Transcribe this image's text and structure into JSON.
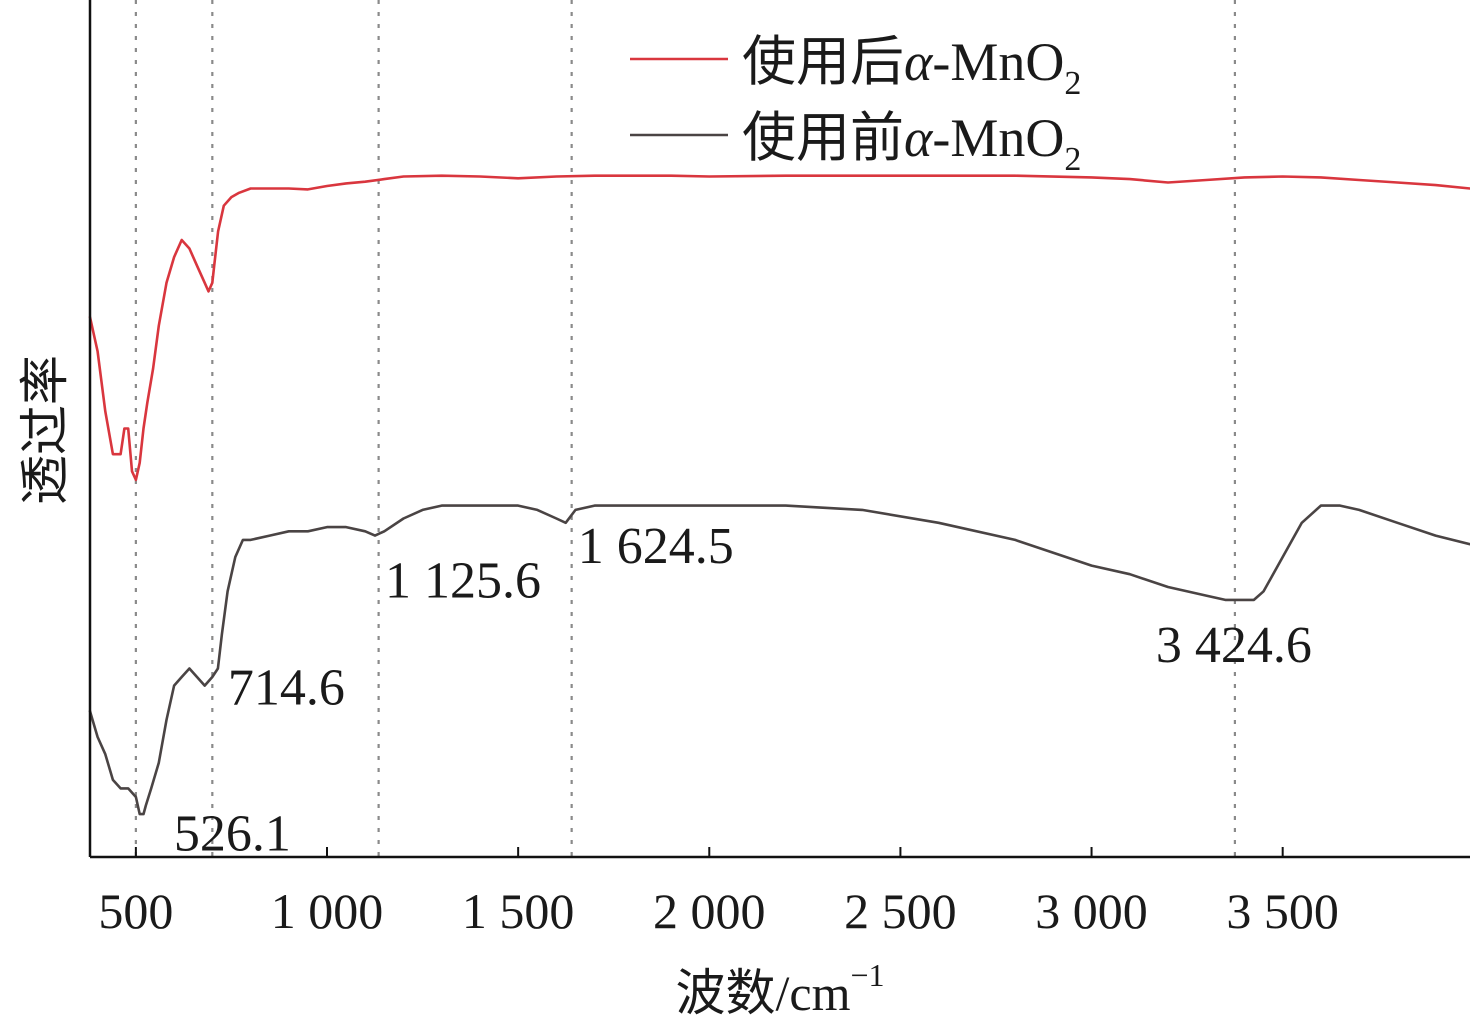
{
  "chart_data": {
    "type": "line",
    "title": "",
    "xlabel": "波数/cm",
    "xlabel_sup": "−1",
    "ylabel": "透过率",
    "xlim": [
      380,
      3990
    ],
    "ylim": [
      0,
      1
    ],
    "yticks_shown": false,
    "grid": false,
    "legend_position": "top-right",
    "x_ticks": [
      {
        "value": 500,
        "label": "500"
      },
      {
        "value": 1000,
        "label": "1 000"
      },
      {
        "value": 1500,
        "label": "1 500"
      },
      {
        "value": 2000,
        "label": "2 000"
      },
      {
        "value": 2500,
        "label": "2 500"
      },
      {
        "value": 3000,
        "label": "3 000"
      },
      {
        "value": 3500,
        "label": "3 500"
      }
    ],
    "reference_lines": [
      500,
      700,
      1135,
      1640,
      3375
    ],
    "series": [
      {
        "name": "使用后α-MnO2",
        "legend_main": "使用后",
        "legend_greek": "α",
        "legend_formula": "-MnO",
        "legend_sub": "2",
        "color": "#d9363e",
        "x": [
          380,
          400,
          420,
          440,
          460,
          470,
          480,
          490,
          500,
          510,
          520,
          530,
          545,
          560,
          580,
          600,
          620,
          640,
          660,
          680,
          690,
          700,
          705,
          715,
          730,
          750,
          770,
          800,
          850,
          900,
          950,
          1000,
          1050,
          1100,
          1150,
          1200,
          1300,
          1400,
          1500,
          1600,
          1700,
          1800,
          1900,
          2000,
          2200,
          2400,
          2600,
          2800,
          3000,
          3100,
          3200,
          3300,
          3400,
          3500,
          3600,
          3700,
          3800,
          3900,
          3990
        ],
        "values": [
          0.63,
          0.59,
          0.52,
          0.47,
          0.47,
          0.5,
          0.5,
          0.45,
          0.44,
          0.46,
          0.5,
          0.53,
          0.57,
          0.62,
          0.67,
          0.7,
          0.72,
          0.71,
          0.69,
          0.67,
          0.66,
          0.67,
          0.69,
          0.73,
          0.76,
          0.77,
          0.775,
          0.78,
          0.78,
          0.78,
          0.779,
          0.783,
          0.786,
          0.788,
          0.791,
          0.794,
          0.795,
          0.794,
          0.792,
          0.794,
          0.795,
          0.795,
          0.795,
          0.794,
          0.795,
          0.795,
          0.795,
          0.795,
          0.793,
          0.791,
          0.787,
          0.79,
          0.793,
          0.794,
          0.793,
          0.79,
          0.787,
          0.784,
          0.78
        ]
      },
      {
        "name": "使用前α-MnO2",
        "legend_main": "使用前",
        "legend_greek": "α",
        "legend_formula": "-MnO",
        "legend_sub": "2",
        "color": "#4a4444",
        "x": [
          380,
          400,
          420,
          440,
          460,
          480,
          500,
          510,
          520,
          526,
          540,
          560,
          580,
          600,
          620,
          640,
          660,
          680,
          700,
          714.6,
          725,
          740,
          760,
          780,
          800,
          850,
          900,
          950,
          1000,
          1050,
          1100,
          1125.6,
          1150,
          1200,
          1250,
          1300,
          1400,
          1500,
          1550,
          1600,
          1624.5,
          1650,
          1700,
          1800,
          2000,
          2200,
          2400,
          2600,
          2800,
          3000,
          3100,
          3200,
          3300,
          3350,
          3424.6,
          3450,
          3500,
          3550,
          3600,
          3650,
          3700,
          3800,
          3900,
          3990
        ],
        "values": [
          0.17,
          0.14,
          0.12,
          0.09,
          0.08,
          0.08,
          0.07,
          0.05,
          0.05,
          0.06,
          0.08,
          0.11,
          0.16,
          0.2,
          0.21,
          0.22,
          0.21,
          0.2,
          0.21,
          0.22,
          0.26,
          0.31,
          0.35,
          0.37,
          0.37,
          0.375,
          0.38,
          0.38,
          0.385,
          0.385,
          0.38,
          0.375,
          0.38,
          0.395,
          0.405,
          0.41,
          0.41,
          0.41,
          0.405,
          0.395,
          0.39,
          0.405,
          0.41,
          0.41,
          0.41,
          0.41,
          0.405,
          0.39,
          0.37,
          0.34,
          0.33,
          0.315,
          0.305,
          0.3,
          0.3,
          0.31,
          0.35,
          0.39,
          0.41,
          0.41,
          0.405,
          0.39,
          0.375,
          0.365
        ]
      }
    ],
    "annotations": [
      {
        "text": "526.1",
        "x": 526.1
      },
      {
        "text": "714.6",
        "x": 714.6
      },
      {
        "text": "1 125.6",
        "x": 1125.6
      },
      {
        "text": "1 624.5",
        "x": 1624.5
      },
      {
        "text": "3 424.6",
        "x": 3424.6
      }
    ]
  }
}
